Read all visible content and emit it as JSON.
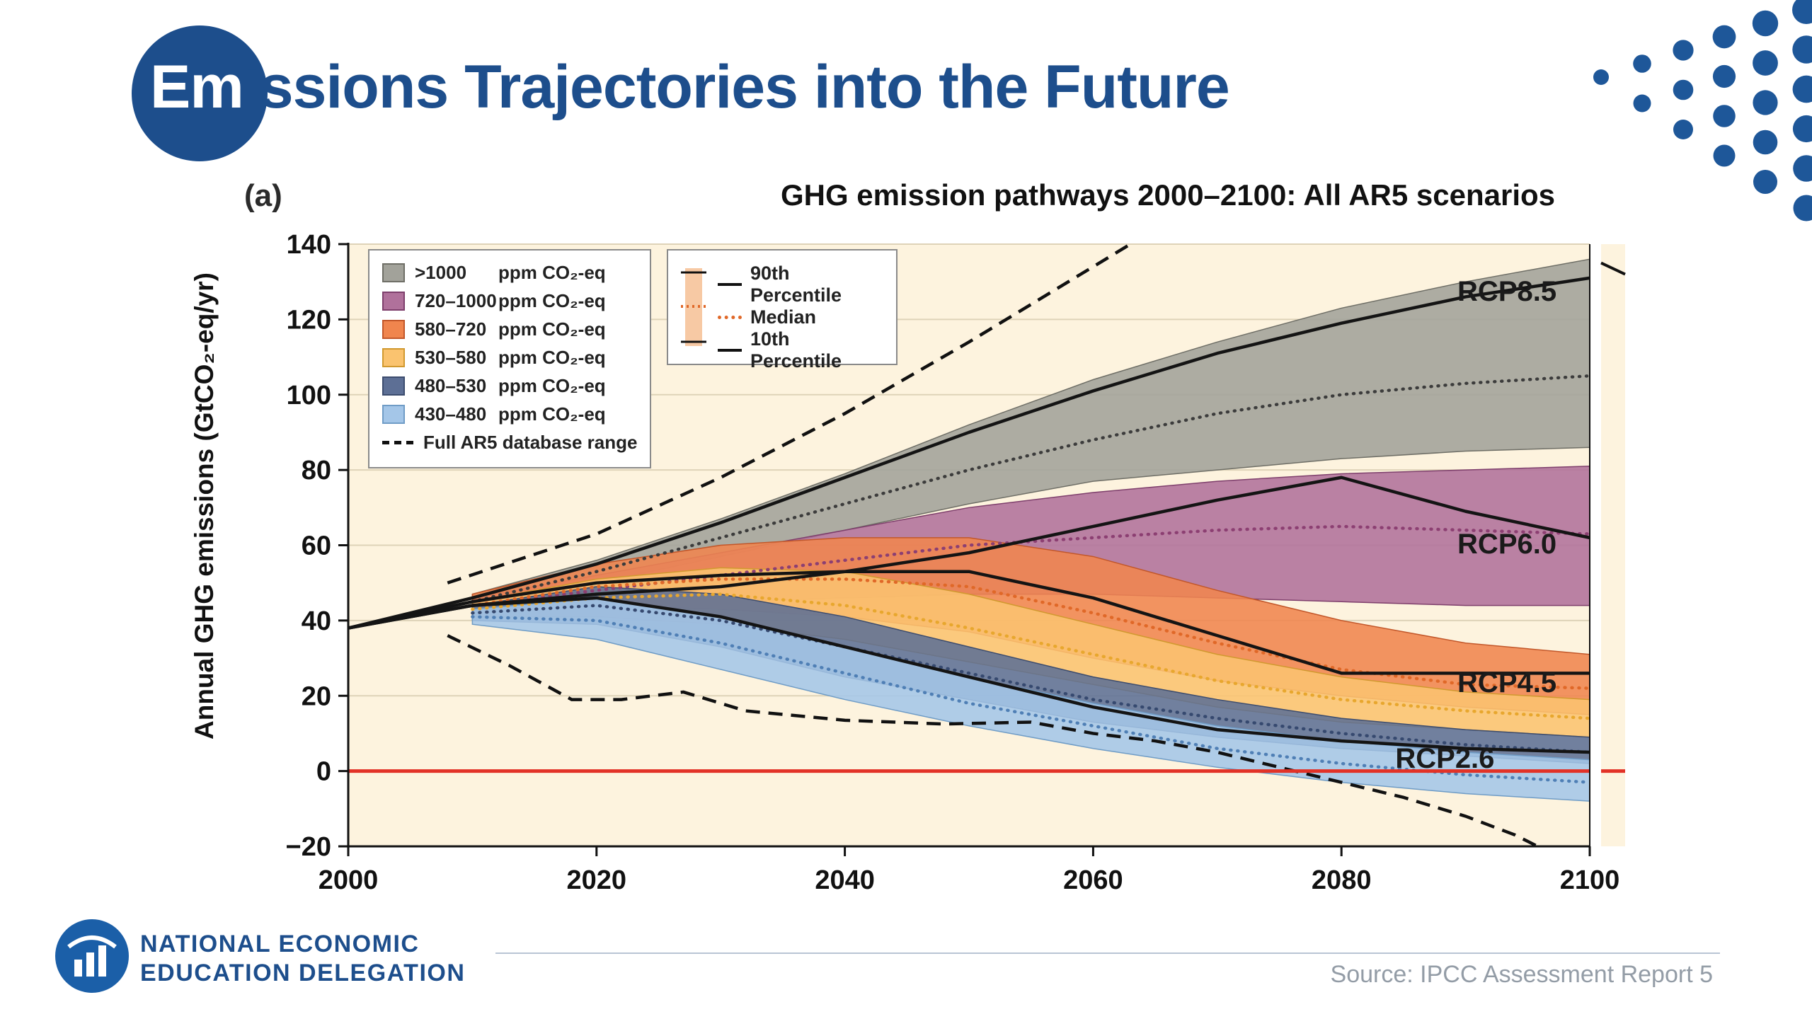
{
  "slide": {
    "title": {
      "highlight": "Em",
      "rest": "issions Trajectories into the Future"
    },
    "footer": {
      "org_line1": "NATIONAL ECONOMIC",
      "org_line2": "EDUCATION DELEGATION",
      "source": "Source: IPCC Assessment Report 5"
    }
  },
  "chart_data": {
    "type": "area",
    "panel_label": "(a)",
    "title": "GHG emission pathways 2000–2100: All AR5 scenarios",
    "xlabel": "",
    "ylabel": "Annual GHG emissions (GtCO₂-eq/yr)",
    "xlim": [
      2000,
      2100
    ],
    "ylim": [
      -20,
      140
    ],
    "x_ticks": [
      2000,
      2020,
      2040,
      2060,
      2080,
      2100
    ],
    "y_ticks": [
      140,
      120,
      100,
      80,
      60,
      40,
      20,
      0,
      -20
    ],
    "grid": true,
    "legend_position": "top-left",
    "background": "#fdf3de",
    "grid_color": "#ded3b8",
    "zero_line_color": "#e23227",
    "x": [
      2000,
      2010,
      2020,
      2030,
      2040,
      2050,
      2060,
      2070,
      2080,
      2090,
      2100
    ],
    "band_x": [
      2010,
      2020,
      2030,
      2040,
      2050,
      2060,
      2070,
      2080,
      2090,
      2100
    ],
    "bands": [
      {
        "name": ">1000 ppm CO₂-eq",
        "color": "#a2a29a",
        "edge": "#6e6e66",
        "median_color": "#3c3c3c",
        "upper": [
          47,
          56,
          67,
          79,
          92,
          104,
          114,
          123,
          130,
          136
        ],
        "lower": [
          43,
          50,
          57,
          64,
          71,
          77,
          80,
          83,
          85,
          86
        ],
        "median": [
          45,
          53,
          62,
          71,
          80,
          88,
          95,
          100,
          103,
          105
        ]
      },
      {
        "name": "720–1000 ppm CO₂-eq",
        "color": "#b0719b",
        "edge": "#7e3f6c",
        "median_color": "#8c3f72",
        "upper": [
          46,
          52,
          58,
          64,
          70,
          74,
          77,
          79,
          80,
          81
        ],
        "lower": [
          42,
          44,
          45,
          46,
          47,
          47,
          46,
          45,
          44,
          44
        ],
        "median": [
          44,
          48,
          52,
          56,
          60,
          62,
          64,
          65,
          64,
          63
        ]
      },
      {
        "name": "580–720 ppm CO₂-eq",
        "color": "#f0854e",
        "edge": "#c2572a",
        "median_color": "#e06828",
        "upper": [
          47,
          55,
          60,
          62,
          62,
          57,
          48,
          40,
          34,
          31
        ],
        "lower": [
          42,
          44,
          43,
          41,
          37,
          30,
          24,
          20,
          17,
          15
        ],
        "median": [
          44,
          49,
          51,
          51,
          49,
          42,
          34,
          27,
          23,
          22
        ]
      },
      {
        "name": "530–580 ppm CO₂-eq",
        "color": "#fac36f",
        "edge": "#d1992f",
        "median_color": "#e8a72e",
        "upper": [
          45,
          51,
          54,
          53,
          47,
          39,
          31,
          25,
          21,
          19
        ],
        "lower": [
          41,
          41,
          39,
          35,
          29,
          23,
          17,
          13,
          11,
          9
        ],
        "median": [
          43,
          46,
          47,
          44,
          38,
          31,
          24,
          19,
          16,
          14
        ]
      },
      {
        "name": "480–530 ppm CO₂-eq",
        "color": "#5d6f95",
        "edge": "#3c4c6e",
        "median_color": "#36496f",
        "upper": [
          44,
          49,
          47,
          41,
          33,
          25,
          19,
          14,
          11,
          9
        ],
        "lower": [
          40,
          39,
          33,
          25,
          19,
          13,
          9,
          6,
          4,
          2
        ],
        "median": [
          42,
          44,
          40,
          33,
          26,
          19,
          14,
          10,
          7,
          5
        ]
      },
      {
        "name": "430–480 ppm CO₂-eq",
        "color": "#a4c6e8",
        "edge": "#6f9cc6",
        "median_color": "#4f7fb5",
        "upper": [
          43,
          46,
          41,
          33,
          25,
          18,
          12,
          8,
          5,
          3
        ],
        "lower": [
          39,
          35,
          27,
          19,
          12,
          6,
          1,
          -3,
          -6,
          -8
        ],
        "median": [
          41,
          40,
          34,
          26,
          18,
          12,
          6,
          2,
          -1,
          -3
        ]
      }
    ],
    "rcp_lines": [
      {
        "name": "RCP8.5",
        "values": [
          38,
          46,
          55,
          66,
          78,
          90,
          101,
          111,
          119,
          126,
          131
        ]
      },
      {
        "name": "RCP6.0",
        "values": [
          38,
          44,
          47,
          49,
          53,
          58,
          65,
          72,
          78,
          69,
          62
        ]
      },
      {
        "name": "RCP4.5",
        "values": [
          38,
          45,
          50,
          52,
          53,
          53,
          46,
          36,
          26,
          26,
          26
        ]
      },
      {
        "name": "RCP2.6",
        "values": [
          38,
          44,
          46,
          41,
          33,
          25,
          17,
          11,
          8,
          6,
          5
        ]
      }
    ],
    "range_dashed": {
      "label": "Full AR5 database range",
      "upper": {
        "x": [
          2008,
          2020,
          2030,
          2040,
          2050,
          2060,
          2068
        ],
        "values": [
          50,
          63,
          78,
          95,
          114,
          134,
          150
        ]
      },
      "lower": {
        "x": [
          2008,
          2013,
          2018,
          2022,
          2027,
          2032,
          2040,
          2048,
          2055,
          2060,
          2065,
          2070,
          2075,
          2080,
          2085,
          2090,
          2094,
          2097
        ],
        "values": [
          36,
          28,
          19,
          19,
          21,
          16,
          13.5,
          12.5,
          13,
          10,
          8,
          5,
          1,
          -3,
          -7,
          -12,
          -17,
          -22
        ]
      }
    },
    "rcp_labels": [
      {
        "text": "RCP8.5",
        "year": 2089,
        "value": 127
      },
      {
        "text": "RCP6.0",
        "year": 2089,
        "value": 60
      },
      {
        "text": "RCP4.5",
        "year": 2089,
        "value": 23
      },
      {
        "text": "RCP2.6",
        "year": 2084,
        "value": 3
      }
    ],
    "legend_categories": [
      {
        "label": ">1000",
        "unit": "ppm CO₂-eq",
        "color": "#a2a29a",
        "edge": "#6e6e66"
      },
      {
        "label": "720–1000",
        "unit": "ppm CO₂-eq",
        "color": "#b0719b",
        "edge": "#7e3f6c"
      },
      {
        "label": "580–720",
        "unit": "ppm CO₂-eq",
        "color": "#f0854e",
        "edge": "#c2572a"
      },
      {
        "label": "530–580",
        "unit": "ppm CO₂-eq",
        "color": "#fac36f",
        "edge": "#d1992f"
      },
      {
        "label": "480–530",
        "unit": "ppm CO₂-eq",
        "color": "#5d6f95",
        "edge": "#3c4c6e"
      },
      {
        "label": "430–480",
        "unit": "ppm CO₂-eq",
        "color": "#a4c6e8",
        "edge": "#6f9cc6"
      },
      {
        "label": "Full AR5 database range",
        "style": "dashed"
      }
    ],
    "legend_percentiles": [
      "90th Percentile",
      "Median",
      "10th Percentile"
    ],
    "side_strip_top_value": 135
  }
}
